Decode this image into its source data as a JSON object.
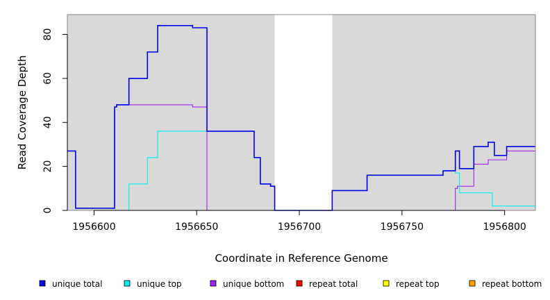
{
  "chart_data": {
    "type": "line",
    "title": "",
    "xlabel": "Coordinate in Reference Genome",
    "ylabel": "Read Coverage Depth",
    "xlim": [
      1956587,
      1956815
    ],
    "ylim": [
      0,
      89
    ],
    "x_ticks": [
      1956600,
      1956650,
      1956700,
      1956750,
      1956800
    ],
    "y_ticks": [
      0,
      20,
      40,
      60,
      80
    ],
    "grid": false,
    "background_color": "#d9d9d9",
    "highlight_region": [
      1956688,
      1956716
    ],
    "highlight_color": "#ffffff",
    "legend_position": "bottom",
    "series": [
      {
        "name": "unique total",
        "color": "#0000ee",
        "points": [
          [
            1956587,
            27
          ],
          [
            1956591,
            27
          ],
          [
            1956591,
            1
          ],
          [
            1956610,
            1
          ],
          [
            1956610,
            47
          ],
          [
            1956611,
            47
          ],
          [
            1956611,
            48
          ],
          [
            1956617,
            48
          ],
          [
            1956617,
            60
          ],
          [
            1956626,
            60
          ],
          [
            1956626,
            72
          ],
          [
            1956631,
            72
          ],
          [
            1956631,
            84
          ],
          [
            1956648,
            84
          ],
          [
            1956648,
            83
          ],
          [
            1956655,
            83
          ],
          [
            1956655,
            36
          ],
          [
            1956678,
            36
          ],
          [
            1956678,
            24
          ],
          [
            1956681,
            24
          ],
          [
            1956681,
            12
          ],
          [
            1956686,
            12
          ],
          [
            1956686,
            11
          ],
          [
            1956688,
            11
          ],
          [
            1956688,
            0
          ],
          [
            1956716,
            0
          ],
          [
            1956716,
            9
          ],
          [
            1956733,
            9
          ],
          [
            1956733,
            16
          ],
          [
            1956770,
            16
          ],
          [
            1956770,
            18
          ],
          [
            1956776,
            18
          ],
          [
            1956776,
            27
          ],
          [
            1956778,
            27
          ],
          [
            1956778,
            19
          ],
          [
            1956785,
            19
          ],
          [
            1956785,
            29
          ],
          [
            1956792,
            29
          ],
          [
            1956792,
            31
          ],
          [
            1956795,
            31
          ],
          [
            1956795,
            25
          ],
          [
            1956801,
            25
          ],
          [
            1956801,
            29
          ],
          [
            1956815,
            29
          ]
        ]
      },
      {
        "name": "unique top",
        "color": "#00eeee",
        "points": [
          [
            1956587,
            0
          ],
          [
            1956617,
            0
          ],
          [
            1956617,
            12
          ],
          [
            1956626,
            12
          ],
          [
            1956626,
            24
          ],
          [
            1956631,
            24
          ],
          [
            1956631,
            36
          ],
          [
            1956655,
            36
          ],
          [
            1956655,
            36
          ],
          [
            1956678,
            36
          ],
          [
            1956678,
            24
          ],
          [
            1956681,
            24
          ],
          [
            1956681,
            12
          ],
          [
            1956686,
            12
          ],
          [
            1956686,
            11
          ],
          [
            1956688,
            11
          ],
          [
            1956688,
            0
          ],
          [
            1956716,
            0
          ],
          [
            1956716,
            9
          ],
          [
            1956733,
            9
          ],
          [
            1956733,
            16
          ],
          [
            1956770,
            16
          ],
          [
            1956770,
            18
          ],
          [
            1956776,
            18
          ],
          [
            1956776,
            17
          ],
          [
            1956778,
            17
          ],
          [
            1956778,
            8
          ],
          [
            1956794,
            8
          ],
          [
            1956794,
            2
          ],
          [
            1956815,
            2
          ]
        ]
      },
      {
        "name": "unique bottom",
        "color": "#a020f0",
        "points": [
          [
            1956587,
            27
          ],
          [
            1956591,
            27
          ],
          [
            1956591,
            1
          ],
          [
            1956610,
            1
          ],
          [
            1956610,
            47
          ],
          [
            1956611,
            47
          ],
          [
            1956611,
            48
          ],
          [
            1956648,
            48
          ],
          [
            1956648,
            47
          ],
          [
            1956655,
            47
          ],
          [
            1956655,
            0
          ],
          [
            1956776,
            0
          ],
          [
            1956776,
            10
          ],
          [
            1956777,
            10
          ],
          [
            1956777,
            11
          ],
          [
            1956785,
            11
          ],
          [
            1956785,
            21
          ],
          [
            1956792,
            21
          ],
          [
            1956792,
            23
          ],
          [
            1956801,
            23
          ],
          [
            1956801,
            27
          ],
          [
            1956815,
            27
          ]
        ]
      },
      {
        "name": "repeat total",
        "color": "#ff0000",
        "points": [
          [
            1956587,
            0
          ],
          [
            1956815,
            0
          ]
        ]
      },
      {
        "name": "repeat top",
        "color": "#ffff00",
        "points": [
          [
            1956587,
            0
          ],
          [
            1956815,
            0
          ]
        ]
      },
      {
        "name": "repeat bottom",
        "color": "#ffa500",
        "points": [
          [
            1956587,
            0
          ],
          [
            1956815,
            0
          ]
        ]
      }
    ]
  }
}
